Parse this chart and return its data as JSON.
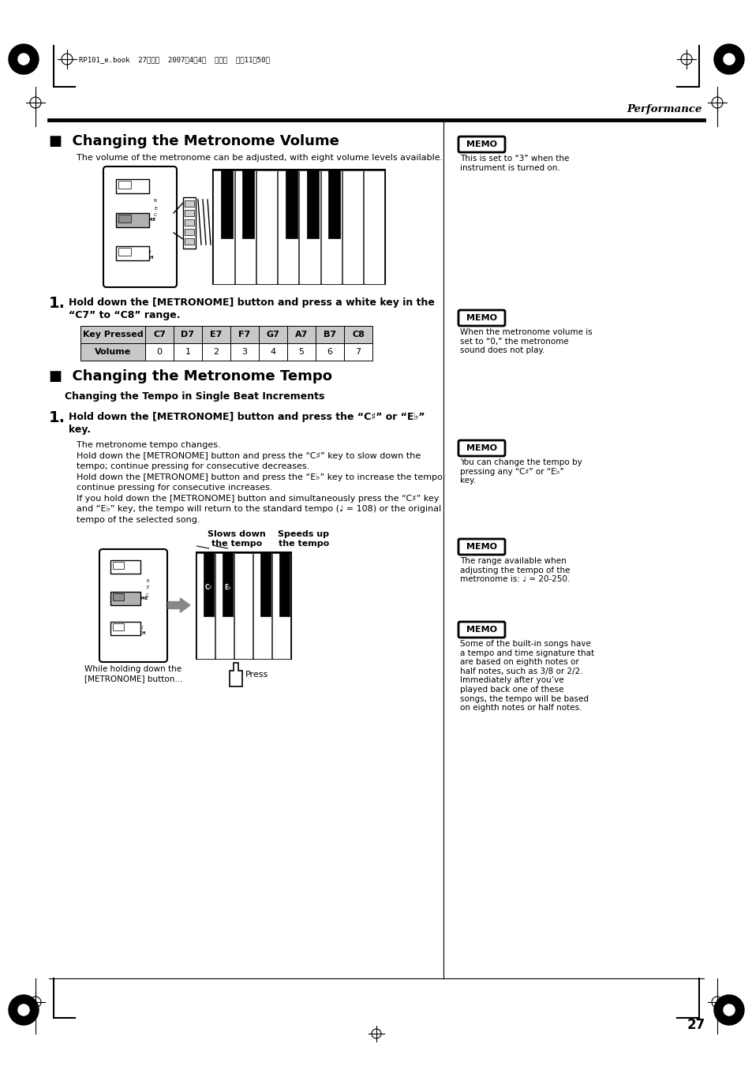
{
  "bg_color": "#ffffff",
  "page_width": 9.54,
  "page_height": 13.51,
  "header_text": "RP101_e.book  27ページ  2007年4月4日  水曜日  午前11時50分",
  "section_right": "Performance",
  "section1_title": "■  Changing the Metronome Volume",
  "section1_desc": "The volume of the metronome can be adjusted, with eight volume levels available.",
  "table_headers": [
    "Key Pressed",
    "C7",
    "D7",
    "E7",
    "F7",
    "G7",
    "A7",
    "B7",
    "C8"
  ],
  "table_row": [
    "Volume",
    "0",
    "1",
    "2",
    "3",
    "4",
    "5",
    "6",
    "7"
  ],
  "section2_title": "■  Changing the Metronome Tempo",
  "section2_sub": "Changing the Tempo in Single Beat Increments",
  "para1": "The metronome tempo changes.",
  "para2": "Hold down the [METRONOME] button and press the “C♯” key to slow down the",
  "para2b": "tempo; continue pressing for consecutive decreases.",
  "para3": "Hold down the [METRONOME] button and press the “E♭” key to increase the tempo;",
  "para3b": "continue pressing for consecutive increases.",
  "para4": "If you hold down the [METRONOME] button and simultaneously press the “C♯” key",
  "para4b": "and “E♭” key, the tempo will return to the standard tempo (♩ = 108) or the original",
  "para4c": "tempo of the selected song.",
  "label_slows": "Slows down\nthe tempo",
  "label_speeds": "Speeds up\nthe tempo",
  "label_while": "While holding down the\n[METRONOME] button...",
  "label_press": "Press",
  "memo1_title": "MEMO",
  "memo1_text": "This is set to “3” when the\ninstrument is turned on.",
  "memo2_title": "MEMO",
  "memo2_text": "When the metronome volume is\nset to “0,” the metronome\nsound does not play.",
  "memo3_title": "MEMO",
  "memo3_text": "You can change the tempo by\npressing any “C♯” or “E♭”\nkey.",
  "memo4_title": "MEMO",
  "memo4_text": "The range available when\nadjusting the tempo of the\nmetronome is: ♩ = 20-250.",
  "memo5_title": "MEMO",
  "memo5_text": "Some of the built-in songs have\na tempo and time signature that\nare based on eighth notes or\nhalf notes, such as 3/8 or 2/2.\nImmediately after you’ve\nplayed back one of these\nsongs, the tempo will be based\non eighth notes or half notes.",
  "page_number": "27"
}
